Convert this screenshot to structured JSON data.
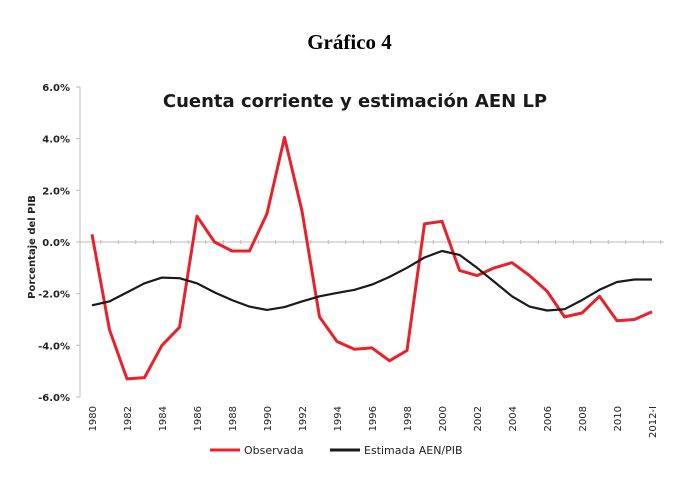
{
  "figure_title": "Gráfico 4",
  "chart_data": {
    "type": "line",
    "title": "Cuenta corriente y estimación AEN LP",
    "xlabel": "",
    "ylabel": "Porcentaje del PIB",
    "ylim": [
      -6,
      6
    ],
    "yticks": [
      6,
      4,
      2,
      0,
      -2,
      -4,
      -6
    ],
    "ytick_labels": [
      "6.0%",
      "4.0%",
      "2.0%",
      "0.0%",
      "-2.0%",
      "-4.0%",
      "-6.0%"
    ],
    "x": [
      "1980",
      "1981",
      "1982",
      "1983",
      "1984",
      "1985",
      "1986",
      "1987",
      "1988",
      "1989",
      "1990",
      "1991",
      "1992",
      "1993",
      "1994",
      "1995",
      "1996",
      "1997",
      "1998",
      "1999",
      "2000",
      "2001",
      "2002",
      "2003",
      "2004",
      "2005",
      "2006",
      "2007",
      "2008",
      "2009",
      "2010",
      "2011",
      "2012-I"
    ],
    "xtick_labels": [
      "1980",
      "1982",
      "1984",
      "1986",
      "1988",
      "1990",
      "1992",
      "1994",
      "1996",
      "1998",
      "2000",
      "2002",
      "2004",
      "2006",
      "2008",
      "2010",
      "2012-I"
    ],
    "legend_position": "bottom",
    "series": [
      {
        "name": "Observada",
        "color": "#e8212b",
        "values": [
          0.3,
          -3.4,
          -5.3,
          -5.25,
          -4.0,
          -3.3,
          1.0,
          0.0,
          -0.35,
          -0.35,
          1.1,
          4.05,
          1.2,
          -2.9,
          -3.85,
          -4.15,
          -4.1,
          -4.6,
          -4.2,
          0.7,
          0.8,
          -1.1,
          -1.3,
          -1.0,
          -0.8,
          -1.3,
          -1.9,
          -2.9,
          -2.75,
          -2.1,
          -3.05,
          -3.0,
          -2.7
        ]
      },
      {
        "name": "Estimada AEN/PIB",
        "color": "#1a1a1a",
        "values": [
          -2.45,
          -2.3,
          -1.95,
          -1.6,
          -1.38,
          -1.4,
          -1.6,
          -1.95,
          -2.25,
          -2.5,
          -2.63,
          -2.52,
          -2.3,
          -2.1,
          -1.97,
          -1.85,
          -1.65,
          -1.35,
          -1.0,
          -0.6,
          -0.35,
          -0.5,
          -1.0,
          -1.55,
          -2.1,
          -2.5,
          -2.65,
          -2.6,
          -2.25,
          -1.85,
          -1.55,
          -1.45,
          -1.45
        ]
      }
    ]
  }
}
